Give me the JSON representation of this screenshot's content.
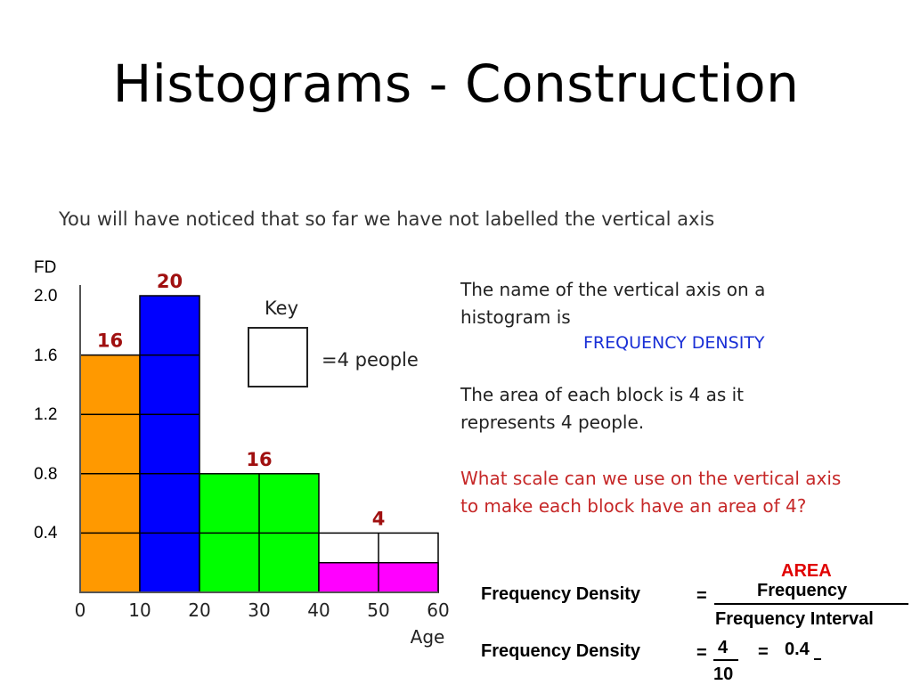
{
  "slide": {
    "title": "Histograms - Construction",
    "intro": "You will have noticed that so far we have not labelled the vertical axis"
  },
  "y_axis": {
    "label": "FD",
    "ticks": [
      "2.0",
      "1.6",
      "1.2",
      "0.8",
      "0.4"
    ]
  },
  "key": {
    "title": "Key",
    "text": "=4 people"
  },
  "text_panel": {
    "line1": "The name of the vertical axis on a",
    "line2": "histogram is",
    "term": "FREQUENCY DENSITY",
    "line3": "The area of each block is 4 as it",
    "line4": "represents 4 people.",
    "question1": "What scale can we use on the vertical axis",
    "question2": "to make each block have an area of 4?"
  },
  "formula": {
    "area": "AREA",
    "lhs": "Frequency Density",
    "eq": "=",
    "numerator": "Frequency",
    "denominator": "Frequency Interval",
    "lhs2": "Frequency Density",
    "eq2": "=",
    "num2": "4",
    "den2": "10",
    "eq3": "=",
    "result": "0.4"
  },
  "colors": {
    "orange": "#ff9900",
    "blue": "#0000ff",
    "green": "#00ff00",
    "magenta": "#ff00ff",
    "label_red": "#a01010"
  },
  "chart_data": {
    "type": "bar",
    "xlabel": "Age",
    "ylabel": "FD",
    "ylim": [
      0,
      2.0
    ],
    "x_ticks": [
      0,
      10,
      20,
      30,
      40,
      50,
      60
    ],
    "bars": [
      {
        "x0": 0,
        "x1": 10,
        "fd": 1.6,
        "frequency": "16",
        "color": "#ff9900",
        "divisions": [
          0.4,
          0.8,
          1.2
        ]
      },
      {
        "x0": 10,
        "x1": 20,
        "fd": 2.0,
        "frequency": "20",
        "color": "#0000ff",
        "divisions": [
          0.4,
          0.8,
          1.2,
          1.6
        ]
      },
      {
        "x0": 20,
        "x1": 40,
        "fd": 0.8,
        "frequency": "16",
        "color": "#00ff00",
        "divisions": [
          0.4
        ],
        "vdivisions": [
          30
        ]
      },
      {
        "x0": 40,
        "x1": 60,
        "fd": 0.2,
        "frequency": "4",
        "color": "#ff00ff",
        "divisions": [],
        "vdivisions": [
          50
        ],
        "outline_to": 0.4
      }
    ]
  }
}
